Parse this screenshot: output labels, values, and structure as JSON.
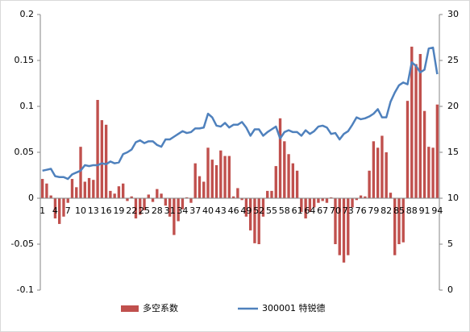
{
  "chart_data": {
    "type": "bar-line",
    "categories": [
      "1",
      null,
      null,
      "4",
      null,
      null,
      "7",
      null,
      null,
      "10",
      null,
      null,
      "13",
      null,
      null,
      "16",
      null,
      null,
      "19",
      null,
      null,
      "22",
      null,
      null,
      "25",
      null,
      null,
      "28",
      null,
      null,
      "31",
      null,
      null,
      "34",
      null,
      null,
      "37",
      null,
      null,
      "40",
      null,
      null,
      "43",
      null,
      null,
      "46",
      null,
      null,
      "49",
      null,
      null,
      "52",
      null,
      null,
      "55",
      null,
      null,
      "58",
      null,
      null,
      "61",
      null,
      null,
      "64",
      null,
      null,
      "67",
      null,
      null,
      "70",
      null,
      null,
      "73",
      null,
      null,
      "76",
      null,
      null,
      "79",
      null,
      null,
      "82",
      null,
      null,
      "85",
      null,
      null,
      "88",
      null,
      null,
      "91",
      null,
      null,
      "94"
    ],
    "series": [
      {
        "name": "多空系数",
        "type": "bar",
        "color": "#c0504d",
        "values": [
          0.021,
          0.016,
          0.003,
          -0.022,
          -0.028,
          -0.02,
          -0.005,
          0.021,
          0.012,
          0.056,
          0.018,
          0.022,
          0.02,
          0.107,
          0.085,
          0.08,
          0.008,
          0.005,
          0.013,
          0.016,
          -0.003,
          0.002,
          -0.022,
          -0.018,
          -0.013,
          0.004,
          -0.004,
          0.01,
          0.005,
          -0.008,
          -0.02,
          -0.04,
          -0.025,
          -0.012,
          0.001,
          -0.005,
          0.038,
          0.024,
          0.018,
          0.055,
          0.042,
          0.036,
          0.052,
          0.046,
          0.046,
          0.002,
          0.011,
          -0.002,
          -0.02,
          -0.035,
          -0.049,
          -0.05,
          -0.02,
          0.008,
          0.008,
          0.035,
          0.087,
          0.062,
          0.048,
          0.038,
          0.03,
          -0.015,
          -0.022,
          -0.015,
          -0.01,
          -0.005,
          -0.003,
          -0.005,
          0.001,
          -0.05,
          -0.062,
          -0.07,
          -0.062,
          -0.01,
          -0.002,
          0.003,
          0.002,
          0.03,
          0.062,
          0.055,
          0.068,
          0.05,
          0.006,
          -0.062,
          -0.05,
          -0.048,
          0.106,
          0.165,
          0.146,
          0.157,
          0.095,
          0.056,
          0.055,
          0.102
        ]
      },
      {
        "name": "300001 特锐德",
        "type": "line",
        "axis": "y2",
        "color": "#4f81bd",
        "values": [
          13.0,
          13.1,
          13.2,
          12.4,
          12.3,
          12.3,
          12.1,
          12.6,
          12.8,
          13.0,
          13.6,
          13.5,
          13.6,
          13.6,
          13.8,
          13.7,
          14.0,
          13.8,
          13.9,
          14.8,
          15.0,
          15.3,
          16.1,
          16.3,
          16.0,
          16.2,
          16.2,
          15.8,
          15.6,
          16.4,
          16.4,
          16.7,
          17.0,
          17.3,
          17.1,
          17.2,
          17.6,
          17.6,
          17.7,
          19.2,
          18.8,
          17.9,
          17.8,
          18.2,
          17.7,
          18.0,
          18.0,
          18.3,
          17.7,
          16.8,
          17.5,
          17.5,
          16.8,
          17.2,
          17.5,
          17.8,
          16.5,
          17.2,
          17.4,
          17.2,
          17.2,
          16.8,
          17.4,
          17.0,
          17.3,
          17.8,
          17.9,
          17.7,
          17.0,
          17.1,
          16.4,
          17.0,
          17.3,
          18.0,
          18.8,
          18.6,
          18.7,
          18.9,
          19.2,
          19.7,
          18.8,
          18.8,
          20.5,
          21.5,
          22.3,
          22.6,
          22.4,
          24.8,
          24.4,
          23.7,
          24.0,
          26.3,
          26.4,
          23.5
        ]
      }
    ],
    "ylim": [
      -0.1,
      0.2
    ],
    "yticks": [
      0.2,
      0.15,
      0.1,
      0.05,
      0,
      -0.05,
      -0.1
    ],
    "y2lim": [
      0,
      30
    ],
    "y2ticks": [
      30,
      25,
      20,
      15,
      10,
      5,
      0
    ],
    "legend": "bottom"
  }
}
